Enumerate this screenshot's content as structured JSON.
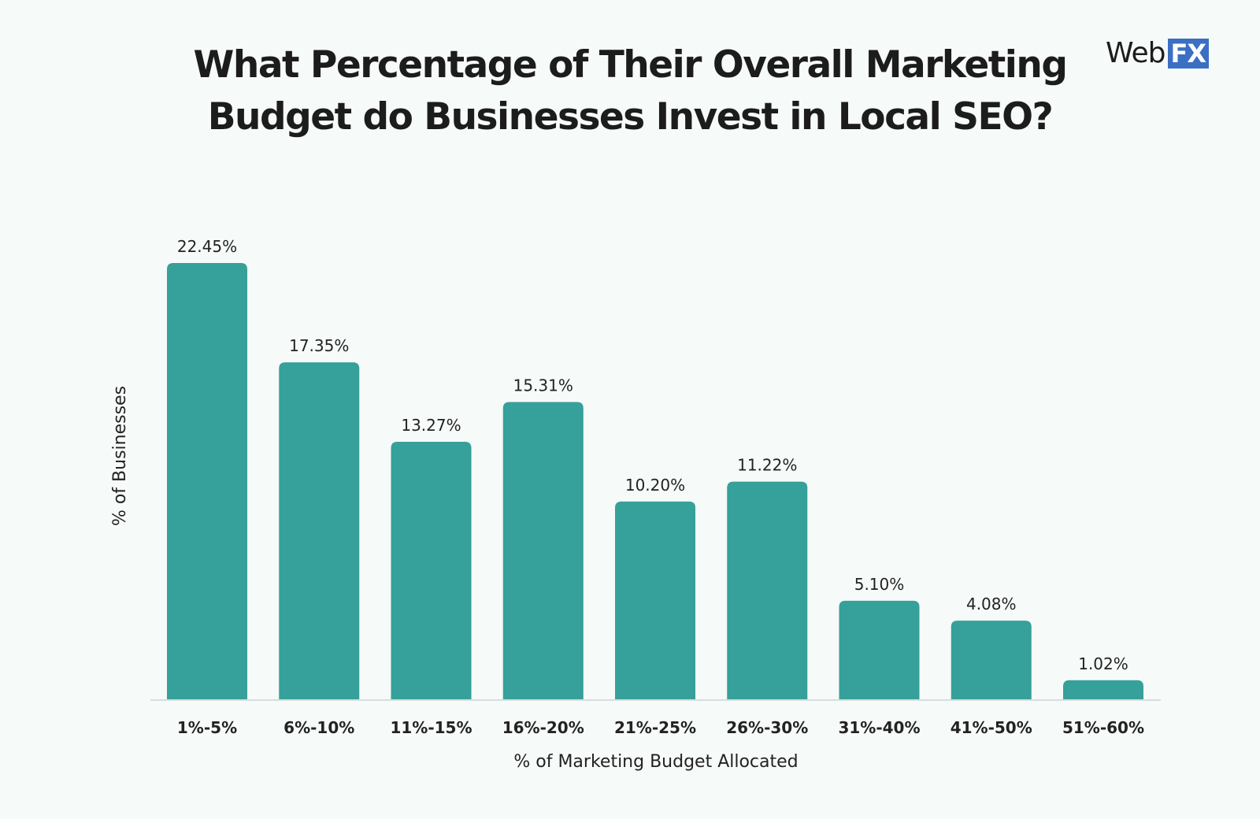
{
  "chart_data": {
    "type": "bar",
    "title": "What Percentage of Their Overall Marketing Budget do Businesses Invest in Local SEO?",
    "title_lines": [
      "What Percentage of Their Overall Marketing",
      "Budget do Businesses Invest in Local SEO?"
    ],
    "xlabel": "% of Marketing Budget Allocated",
    "ylabel": "% of Businesses",
    "categories": [
      "1%-5%",
      "6%-10%",
      "11%-15%",
      "16%-20%",
      "21%-25%",
      "26%-30%",
      "31%-40%",
      "41%-50%",
      "51%-60%"
    ],
    "values": [
      22.45,
      17.35,
      13.27,
      15.31,
      10.2,
      11.22,
      5.1,
      4.08,
      1.02
    ],
    "data_labels": [
      "22.45%",
      "17.35%",
      "13.27%",
      "15.31%",
      "10.20%",
      "11.22%",
      "5.10%",
      "4.08%",
      "1.02%"
    ],
    "ylim": [
      0,
      22.45
    ],
    "grid": false,
    "legend": "none",
    "bar_color": "#36a09a"
  },
  "logo": {
    "text": "Web",
    "badge": "FX",
    "badge_color": "#3b6fc4"
  }
}
